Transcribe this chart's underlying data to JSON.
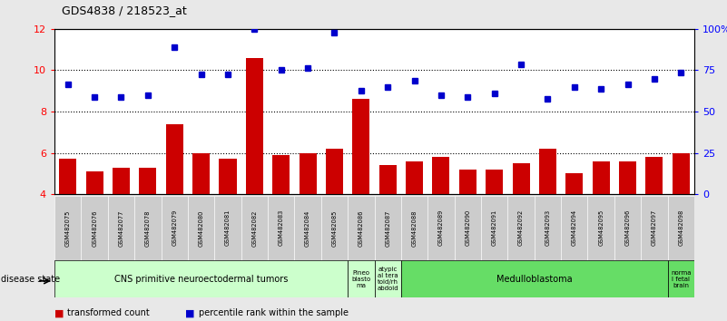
{
  "title": "GDS4838 / 218523_at",
  "samples": [
    "GSM482075",
    "GSM482076",
    "GSM482077",
    "GSM482078",
    "GSM482079",
    "GSM482080",
    "GSM482081",
    "GSM482082",
    "GSM482083",
    "GSM482084",
    "GSM482085",
    "GSM482086",
    "GSM482087",
    "GSM482088",
    "GSM482089",
    "GSM482090",
    "GSM482091",
    "GSM482092",
    "GSM482093",
    "GSM482094",
    "GSM482095",
    "GSM482096",
    "GSM482097",
    "GSM482098"
  ],
  "transformed_count": [
    5.7,
    5.1,
    5.3,
    5.3,
    7.4,
    6.0,
    5.7,
    10.6,
    5.9,
    6.0,
    6.2,
    8.6,
    5.4,
    5.6,
    5.8,
    5.2,
    5.2,
    5.5,
    6.2,
    5.0,
    5.6,
    5.6,
    5.8,
    6.0
  ],
  "percentile_rank": [
    9.3,
    8.7,
    8.7,
    8.8,
    11.1,
    9.8,
    9.8,
    12.0,
    10.0,
    10.1,
    11.8,
    9.0,
    9.2,
    9.5,
    8.8,
    8.7,
    8.9,
    10.3,
    8.6,
    9.2,
    9.1,
    9.3,
    9.6,
    9.9
  ],
  "bar_color": "#cc0000",
  "dot_color": "#0000cc",
  "ylim": [
    4,
    12
  ],
  "yticks_left": [
    4,
    6,
    8,
    10,
    12
  ],
  "yticks_right_vals": [
    "0",
    "25",
    "50",
    "75",
    "100%"
  ],
  "dotted_lines": [
    6,
    8,
    10
  ],
  "disease_groups": [
    {
      "label": "CNS primitive neuroectodermal tumors",
      "start": 0,
      "end": 11,
      "color": "#ccffcc"
    },
    {
      "label": "Pineo\nblasto\nma",
      "start": 11,
      "end": 12,
      "color": "#ccffcc"
    },
    {
      "label": "atypic\nal tera\ntoid/rh\nabdoid",
      "start": 12,
      "end": 13,
      "color": "#ccffcc"
    },
    {
      "label": "Medulloblastoma",
      "start": 13,
      "end": 23,
      "color": "#66dd66"
    },
    {
      "label": "norma\nl fetal\nbrain",
      "start": 23,
      "end": 24,
      "color": "#66dd66"
    }
  ],
  "legend_labels": [
    "transformed count",
    "percentile rank within the sample"
  ],
  "legend_colors": [
    "#cc0000",
    "#0000cc"
  ],
  "xlabel_disease": "disease state",
  "background_color": "#e8e8e8",
  "plot_bg_color": "#ffffff"
}
